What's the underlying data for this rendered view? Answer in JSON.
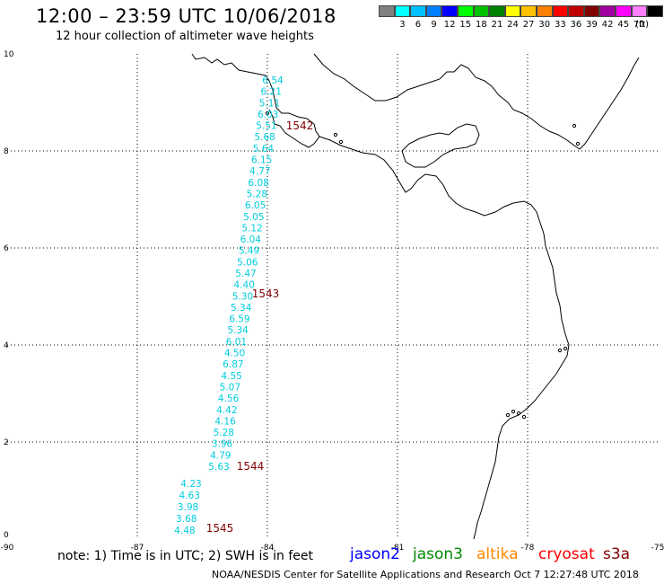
{
  "header": {
    "title": "12:00 – 23:59 UTC 10/06/2018",
    "subtitle": "12 hour collection of altimeter wave heights"
  },
  "legend": {
    "unit": "(ft)",
    "bins": [
      {
        "label": "",
        "color": "#808080"
      },
      {
        "label": "3",
        "color": "#00ffff"
      },
      {
        "label": "6",
        "color": "#00c0ff"
      },
      {
        "label": "9",
        "color": "#0080ff"
      },
      {
        "label": "12",
        "color": "#0000ff"
      },
      {
        "label": "15",
        "color": "#00ff00"
      },
      {
        "label": "18",
        "color": "#00c000"
      },
      {
        "label": "21",
        "color": "#008000"
      },
      {
        "label": "24",
        "color": "#ffff00"
      },
      {
        "label": "27",
        "color": "#ffc000"
      },
      {
        "label": "30",
        "color": "#ff8000"
      },
      {
        "label": "33",
        "color": "#ff0000"
      },
      {
        "label": "36",
        "color": "#c00000"
      },
      {
        "label": "39",
        "color": "#800000"
      },
      {
        "label": "42",
        "color": "#a000a0"
      },
      {
        "label": "45",
        "color": "#ff00ff"
      },
      {
        "label": "70",
        "color": "#ff80ff"
      },
      {
        "label": "",
        "color": "#000000"
      }
    ]
  },
  "axes": {
    "x_ticks": [
      "-90",
      "-87",
      "-84",
      "-81",
      "-78",
      "-75"
    ],
    "y_ticks": [
      "0",
      "2",
      "4",
      "6",
      "8",
      "10"
    ],
    "lon_range": [
      -90,
      -75
    ],
    "lat_range": [
      0,
      10
    ]
  },
  "track": {
    "color": "#00ccdd",
    "observations": [
      {
        "swh": "6.54"
      },
      {
        "swh": "6.21"
      },
      {
        "swh": "5.11"
      },
      {
        "swh": "6.03"
      },
      {
        "swh": "5.51"
      },
      {
        "swh": "5.68"
      },
      {
        "swh": "5.64"
      },
      {
        "swh": "6.15"
      },
      {
        "swh": "4.77"
      },
      {
        "swh": "6.08"
      },
      {
        "swh": "5.28"
      },
      {
        "swh": "6.05"
      },
      {
        "swh": "5.05"
      },
      {
        "swh": "5.12"
      },
      {
        "swh": "6.04"
      },
      {
        "swh": "5.49"
      },
      {
        "swh": "5.06"
      },
      {
        "swh": "5.47"
      },
      {
        "swh": "4.40"
      },
      {
        "swh": "5.30"
      },
      {
        "swh": "5.34"
      },
      {
        "swh": "6.59"
      },
      {
        "swh": "5.34"
      },
      {
        "swh": "6.01"
      },
      {
        "swh": "4.50"
      },
      {
        "swh": "6.87"
      },
      {
        "swh": "4.55"
      },
      {
        "swh": "5.07"
      },
      {
        "swh": "4.56"
      },
      {
        "swh": "4.42"
      },
      {
        "swh": "4.16"
      },
      {
        "swh": "5.28"
      },
      {
        "swh": "3.96"
      },
      {
        "swh": "4.79"
      },
      {
        "swh": "5.63"
      },
      {
        "swh": "4.23"
      },
      {
        "swh": "4.63"
      },
      {
        "swh": "3.98"
      },
      {
        "swh": "3.68"
      },
      {
        "swh": "4.48"
      }
    ],
    "time_labels": [
      {
        "text": "1542"
      },
      {
        "text": "1543"
      },
      {
        "text": "1544"
      },
      {
        "text": "1545"
      }
    ],
    "time_color": "#800000"
  },
  "note": "note: 1) Time is in UTC; 2) SWH is in feet",
  "satellites": [
    {
      "name": "jason2",
      "color": "#0000ff"
    },
    {
      "name": "jason3",
      "color": "#008800"
    },
    {
      "name": "altika",
      "color": "#ff8800"
    },
    {
      "name": "cryosat",
      "color": "#ff0000"
    },
    {
      "name": "s3a",
      "color": "#800000"
    }
  ],
  "footer": "NOAA/NESDIS Center for Satellite Applications and Research    Oct  7 12:27:48 UTC 2018"
}
